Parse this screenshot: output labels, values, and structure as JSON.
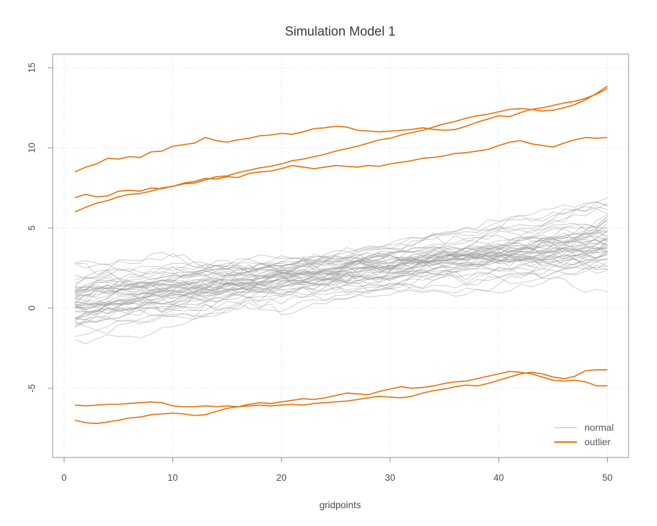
{
  "figure": {
    "title": "Simulation Model 1",
    "xlabel": "gridpoints",
    "ylabel": ""
  },
  "colors": {
    "normal": "#C6C6C6",
    "normal_stroke": "#9B9B9B",
    "outlier": "#E6730C",
    "grid": "#DCDCDC",
    "box": "#A3A3A3",
    "tick": "#8C8C8C",
    "title_text": "#3A3A3A",
    "tick_text": "#4D4D4D"
  },
  "chart_data": {
    "type": "line",
    "title": "Simulation Model 1",
    "xlabel": "gridpoints",
    "ylabel": "",
    "xlim": [
      -1.05,
      51.95
    ],
    "ylim": [
      -9.32,
      15.85
    ],
    "x_ticks": [
      0,
      10,
      20,
      30,
      40,
      50
    ],
    "y_ticks": [
      -5,
      0,
      5,
      10,
      15
    ],
    "grid": "dotted at major ticks",
    "legend_position": "bottom-right-inside",
    "legend": [
      {
        "label": "normal",
        "color": "#C6C6C6",
        "line_width": 1.2
      },
      {
        "label": "outlier",
        "color": "#E6730C",
        "line_width": 2.2
      }
    ],
    "x": [
      1,
      2,
      3,
      4,
      5,
      6,
      7,
      8,
      9,
      10,
      11,
      12,
      13,
      14,
      15,
      16,
      17,
      18,
      19,
      20,
      21,
      22,
      23,
      24,
      25,
      26,
      27,
      28,
      29,
      30,
      31,
      32,
      33,
      34,
      35,
      36,
      37,
      38,
      39,
      40,
      41,
      42,
      43,
      44,
      45,
      46,
      47,
      48,
      49,
      50
    ],
    "series": [
      {
        "name": "outlier_top_1",
        "group": "outlier",
        "values": [
          8.5,
          8.8,
          9.0,
          9.35,
          9.3,
          9.45,
          9.4,
          9.75,
          9.8,
          10.1,
          10.2,
          10.3,
          10.65,
          10.45,
          10.35,
          10.5,
          10.6,
          10.75,
          10.8,
          10.9,
          10.85,
          11.0,
          11.2,
          11.25,
          11.35,
          11.3,
          11.1,
          11.05,
          11.0,
          11.05,
          11.1,
          11.15,
          11.25,
          11.15,
          11.1,
          11.15,
          11.35,
          11.6,
          11.8,
          12.0,
          11.95,
          12.2,
          12.4,
          12.5,
          12.65,
          12.8,
          12.9,
          13.1,
          13.35,
          13.7
        ]
      },
      {
        "name": "outlier_top_2",
        "group": "outlier",
        "values": [
          6.0,
          6.3,
          6.55,
          6.7,
          6.95,
          7.1,
          7.15,
          7.3,
          7.5,
          7.6,
          7.75,
          7.8,
          8.0,
          8.2,
          8.25,
          8.45,
          8.6,
          8.75,
          8.85,
          9.0,
          9.2,
          9.3,
          9.45,
          9.6,
          9.8,
          9.95,
          10.1,
          10.3,
          10.5,
          10.6,
          10.8,
          10.95,
          11.1,
          11.3,
          11.5,
          11.65,
          11.85,
          12.0,
          12.1,
          12.25,
          12.4,
          12.45,
          12.4,
          12.3,
          12.35,
          12.5,
          12.7,
          13.0,
          13.4,
          13.85
        ]
      },
      {
        "name": "outlier_top_3",
        "group": "outlier",
        "values": [
          6.9,
          7.1,
          6.95,
          7.0,
          7.3,
          7.35,
          7.3,
          7.5,
          7.45,
          7.6,
          7.8,
          7.9,
          8.1,
          8.05,
          8.2,
          8.15,
          8.4,
          8.5,
          8.55,
          8.7,
          8.9,
          8.8,
          8.7,
          8.8,
          8.9,
          8.85,
          8.8,
          8.9,
          8.85,
          9.0,
          9.1,
          9.2,
          9.35,
          9.4,
          9.5,
          9.65,
          9.7,
          9.8,
          9.9,
          10.15,
          10.35,
          10.45,
          10.25,
          10.15,
          10.05,
          10.3,
          10.5,
          10.65,
          10.6,
          10.65
        ]
      },
      {
        "name": "outlier_bottom_1",
        "group": "outlier",
        "values": [
          -6.05,
          -6.1,
          -6.05,
          -6.0,
          -6.0,
          -5.95,
          -5.9,
          -5.85,
          -5.9,
          -6.1,
          -6.15,
          -6.15,
          -6.1,
          -6.15,
          -6.1,
          -6.15,
          -6.1,
          -6.05,
          -6.1,
          -6.05,
          -6.0,
          -6.05,
          -5.95,
          -5.9,
          -5.85,
          -5.8,
          -5.7,
          -5.6,
          -5.5,
          -5.55,
          -5.6,
          -5.5,
          -5.3,
          -5.15,
          -5.05,
          -4.9,
          -4.8,
          -4.85,
          -4.7,
          -4.5,
          -4.3,
          -4.1,
          -4.0,
          -4.1,
          -4.3,
          -4.4,
          -4.25,
          -3.9,
          -3.85,
          -3.85
        ]
      },
      {
        "name": "outlier_bottom_2",
        "group": "outlier",
        "values": [
          -7.0,
          -7.15,
          -7.2,
          -7.1,
          -7.0,
          -6.85,
          -6.8,
          -6.65,
          -6.6,
          -6.55,
          -6.6,
          -6.7,
          -6.65,
          -6.45,
          -6.25,
          -6.15,
          -6.0,
          -5.9,
          -5.95,
          -5.85,
          -5.75,
          -5.65,
          -5.7,
          -5.6,
          -5.45,
          -5.3,
          -5.35,
          -5.4,
          -5.2,
          -5.05,
          -4.9,
          -5.0,
          -4.95,
          -4.85,
          -4.7,
          -4.6,
          -4.55,
          -4.4,
          -4.25,
          -4.1,
          -3.95,
          -4.0,
          -4.1,
          -4.3,
          -4.5,
          -4.55,
          -4.5,
          -4.6,
          -4.85,
          -4.85
        ]
      }
    ],
    "normal_curves": {
      "count": 55,
      "points": 50,
      "description": "bundle of noisy linear upward-trending curves",
      "left_mean": 0.4,
      "left_sd": 1.0,
      "left_range": [
        -2.4,
        2.7
      ],
      "right_mean": 4.1,
      "right_sd": 1.15,
      "right_range": [
        1.2,
        6.85
      ],
      "wiggle_sd": 0.22,
      "wiggle_smooth": 0.6,
      "seed": 13
    }
  }
}
